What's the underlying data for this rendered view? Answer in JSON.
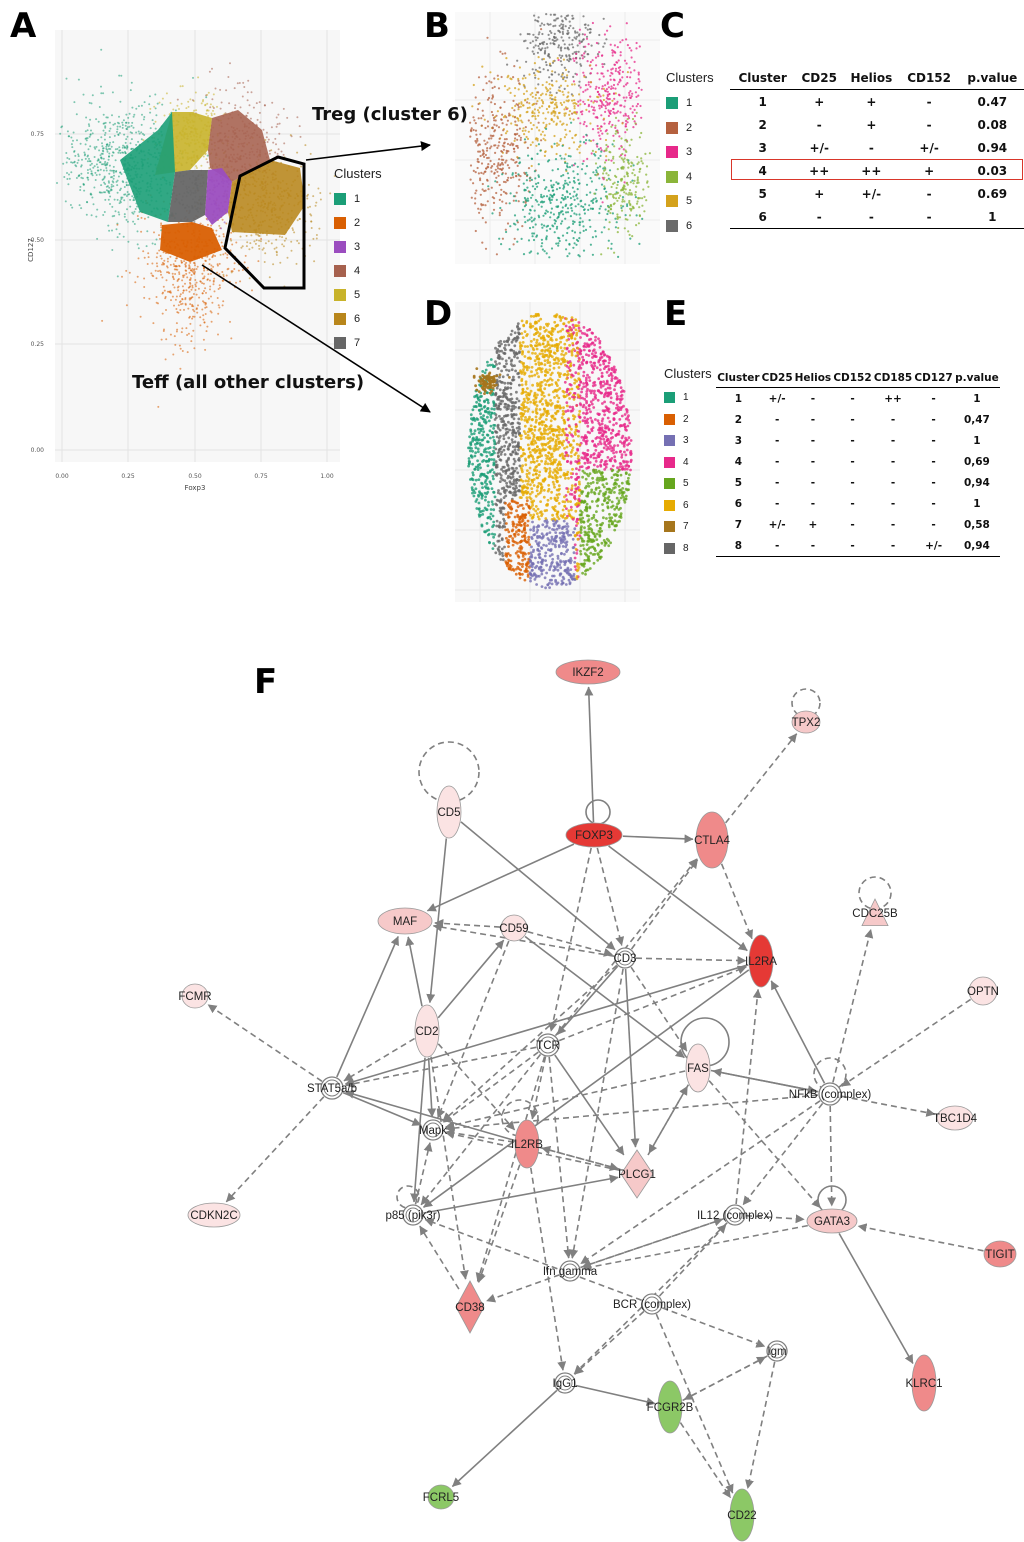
{
  "panels": {
    "a": "A",
    "b": "B",
    "c": "C",
    "d": "D",
    "e": "E",
    "f": "F"
  },
  "panel_a": {
    "x_axis_label": "Foxp3",
    "y_axis_label": "CD127",
    "x_ticks": [
      "0.00",
      "0.25",
      "0.50",
      "0.75",
      "1.00"
    ],
    "y_ticks": [
      "0.00",
      "0.25",
      "0.50",
      "0.75"
    ],
    "treg_label": "Treg (cluster 6)",
    "teff_label": "Teff (all other clusters)"
  },
  "legend_a": {
    "title": "Clusters",
    "items": [
      {
        "label": "1",
        "color": "#1b9e77"
      },
      {
        "label": "2",
        "color": "#d95f02"
      },
      {
        "label": "3",
        "color": "#9b4dbf"
      },
      {
        "label": "4",
        "color": "#a6614e"
      },
      {
        "label": "5",
        "color": "#c8b32a"
      },
      {
        "label": "6",
        "color": "#b8861b"
      },
      {
        "label": "7",
        "color": "#666666"
      }
    ]
  },
  "legend_b": {
    "title": "Clusters",
    "items": [
      {
        "label": "1",
        "color": "#1b9e77"
      },
      {
        "label": "2",
        "color": "#b5613f"
      },
      {
        "label": "3",
        "color": "#e7298a"
      },
      {
        "label": "4",
        "color": "#8bb53a"
      },
      {
        "label": "5",
        "color": "#d4a21c"
      },
      {
        "label": "6",
        "color": "#6b6b6b"
      }
    ]
  },
  "legend_d": {
    "title": "Clusters",
    "items": [
      {
        "label": "1",
        "color": "#1b9e77"
      },
      {
        "label": "2",
        "color": "#d95f02"
      },
      {
        "label": "3",
        "color": "#7570b3"
      },
      {
        "label": "4",
        "color": "#e7298a"
      },
      {
        "label": "5",
        "color": "#66a61e"
      },
      {
        "label": "6",
        "color": "#e6ab02"
      },
      {
        "label": "7",
        "color": "#a6761d"
      },
      {
        "label": "8",
        "color": "#666666"
      }
    ]
  },
  "table_c": {
    "headers": [
      "Cluster",
      "CD25",
      "Helios",
      "CD152",
      "p.value"
    ],
    "rows": [
      [
        "1",
        "+",
        "+",
        "-",
        "0.47"
      ],
      [
        "2",
        "-",
        "+",
        "-",
        "0.08"
      ],
      [
        "3",
        "+/-",
        "-",
        "+/-",
        "0.94"
      ],
      [
        "4",
        "++",
        "++",
        "+",
        "0.03"
      ],
      [
        "5",
        "+",
        "+/-",
        "-",
        "0.69"
      ],
      [
        "6",
        "-",
        "-",
        "-",
        "1"
      ]
    ],
    "highlight_row": 4
  },
  "table_e": {
    "headers": [
      "Cluster",
      "CD25",
      "Helios",
      "CD152",
      "CD185",
      "CD127",
      "p.value"
    ],
    "rows": [
      [
        "1",
        "+/-",
        "-",
        "-",
        "++",
        "-",
        "1"
      ],
      [
        "2",
        "-",
        "-",
        "-",
        "-",
        "-",
        "0,47"
      ],
      [
        "3",
        "-",
        "-",
        "-",
        "-",
        "-",
        "1"
      ],
      [
        "4",
        "-",
        "-",
        "-",
        "-",
        "-",
        "0,69"
      ],
      [
        "5",
        "-",
        "-",
        "-",
        "-",
        "-",
        "0,94"
      ],
      [
        "6",
        "-",
        "-",
        "-",
        "-",
        "-",
        "1"
      ],
      [
        "7",
        "+/-",
        "+",
        "-",
        "-",
        "-",
        "0,58"
      ],
      [
        "8",
        "-",
        "-",
        "-",
        "-",
        "+/-",
        "0,94"
      ]
    ]
  },
  "network_f": {
    "node_colors": {
      "strong": "#e53935",
      "medium": "#ef8a8a",
      "light": "#f6c9c9",
      "pale": "#fbe3e3",
      "green": "#8cc866",
      "complex": "#ffffff"
    },
    "nodes": [
      {
        "id": "IKZF2",
        "label": "IKZF2",
        "kind": "medium"
      },
      {
        "id": "TPX2",
        "label": "TPX2",
        "kind": "light"
      },
      {
        "id": "CD5",
        "label": "CD5",
        "kind": "pale"
      },
      {
        "id": "FOXP3",
        "label": "FOXP3",
        "kind": "strong"
      },
      {
        "id": "CTLA4",
        "label": "CTLA4",
        "kind": "medium"
      },
      {
        "id": "CDC25B",
        "label": "CDC25B",
        "kind": "light"
      },
      {
        "id": "MAF",
        "label": "MAF",
        "kind": "light"
      },
      {
        "id": "CD59",
        "label": "CD59",
        "kind": "pale"
      },
      {
        "id": "CD3",
        "label": "CD3",
        "kind": "complex"
      },
      {
        "id": "IL2RA",
        "label": "IL2RA",
        "kind": "strong"
      },
      {
        "id": "FCMR",
        "label": "FCMR",
        "kind": "pale"
      },
      {
        "id": "OPTN",
        "label": "OPTN",
        "kind": "pale"
      },
      {
        "id": "CD2",
        "label": "CD2",
        "kind": "pale"
      },
      {
        "id": "TCR",
        "label": "TCR",
        "kind": "complex"
      },
      {
        "id": "FAS",
        "label": "FAS",
        "kind": "pale"
      },
      {
        "id": "STAT5",
        "label": "STAT5a/b",
        "kind": "complex"
      },
      {
        "id": "NFKB",
        "label": "NFkB (complex)",
        "kind": "complex"
      },
      {
        "id": "TBC1D4",
        "label": "TBC1D4",
        "kind": "pale"
      },
      {
        "id": "Mapk",
        "label": "Mapk",
        "kind": "complex"
      },
      {
        "id": "IL2RB",
        "label": "IL2RB",
        "kind": "medium"
      },
      {
        "id": "PLCG1",
        "label": "PLCG1",
        "kind": "light"
      },
      {
        "id": "CDKN2C",
        "label": "CDKN2C",
        "kind": "pale"
      },
      {
        "id": "p85",
        "label": "p85 (pik3r)",
        "kind": "complex"
      },
      {
        "id": "IL12",
        "label": "IL12 (complex)",
        "kind": "complex"
      },
      {
        "id": "GATA3",
        "label": "GATA3",
        "kind": "light"
      },
      {
        "id": "TIGIT",
        "label": "TIGIT",
        "kind": "medium"
      },
      {
        "id": "IFNG",
        "label": "Ifn gamma",
        "kind": "complex"
      },
      {
        "id": "BCR",
        "label": "BCR (complex)",
        "kind": "complex"
      },
      {
        "id": "CD38",
        "label": "CD38",
        "kind": "medium"
      },
      {
        "id": "Igm",
        "label": "Igm",
        "kind": "complex"
      },
      {
        "id": "IgG1",
        "label": "IgG1",
        "kind": "complex"
      },
      {
        "id": "FCGR2B",
        "label": "FCGR2B",
        "kind": "green"
      },
      {
        "id": "KLRC1",
        "label": "KLRC1",
        "kind": "medium"
      },
      {
        "id": "FCRL5",
        "label": "FCRL5",
        "kind": "green"
      },
      {
        "id": "CD22",
        "label": "CD22",
        "kind": "green"
      }
    ]
  }
}
